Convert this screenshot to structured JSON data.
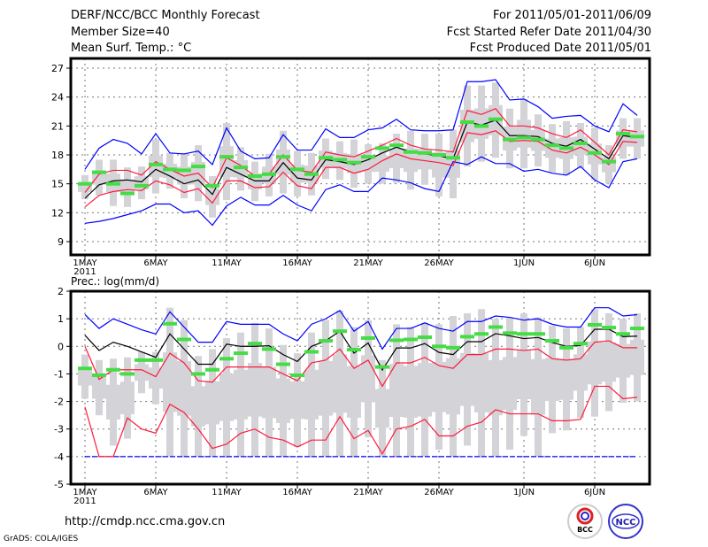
{
  "header": {
    "title": "DERF/NCC/BCC Monthly Forecast",
    "member_size": "Member Size=40",
    "variable": "Mean Surf. Temp.: °C",
    "period": "For 2011/05/01-2011/06/09",
    "started": "Fcst Started Refer Date 2011/04/30",
    "produced": "Fcst Produced Date 2011/05/01"
  },
  "footer": {
    "url": "http://cmdp.ncc.cma.gov.cn",
    "credit": "GrADS: COLA/IGES",
    "logo_bcc": "BCC",
    "logo_ncc": "NCC"
  },
  "colors": {
    "max_min": "#0000ff",
    "spread": "#ff1a3c",
    "mean": "#000000",
    "median": "#44dd44",
    "box": "#d3d3d8"
  },
  "chart_data": [
    {
      "type": "line",
      "title": "Mean Surf. Temp.: °C",
      "xlabel_year": "2011",
      "x_ticks": [
        {
          "day": 1,
          "label": "1MAY"
        },
        {
          "day": 6,
          "label": "6MAY"
        },
        {
          "day": 11,
          "label": "11MAY"
        },
        {
          "day": 16,
          "label": "16MAY"
        },
        {
          "day": 21,
          "label": "21MAY"
        },
        {
          "day": 26,
          "label": "26MAY"
        },
        {
          "day": 32,
          "label": "1JUN"
        },
        {
          "day": 37,
          "label": "6JUN"
        }
      ],
      "y_ticks": [
        9,
        12,
        15,
        18,
        21,
        24,
        27
      ],
      "ylim": [
        8,
        28
      ],
      "grid": true,
      "series": [
        {
          "name": "max",
          "color": "#0000ff",
          "values": [
            16.5,
            18.7,
            19.6,
            19.2,
            18.1,
            20.2,
            18.2,
            18.1,
            18.4,
            17.0,
            20.8,
            18.4,
            17.6,
            17.7,
            20.1,
            18.5,
            18.5,
            20.7,
            19.8,
            19.8,
            20.6,
            20.8,
            21.7,
            20.6,
            20.5,
            20.5,
            20.6,
            25.6,
            25.6,
            25.8,
            23.7,
            23.8,
            23.0,
            21.8,
            22.0,
            22.1,
            21.0,
            20.4,
            23.3,
            22.1
          ]
        },
        {
          "name": "min",
          "color": "#0000ff",
          "values": [
            10.9,
            11.1,
            11.4,
            11.8,
            12.2,
            12.9,
            12.9,
            12.0,
            12.2,
            10.7,
            12.7,
            13.6,
            12.8,
            12.8,
            13.8,
            12.8,
            12.2,
            14.4,
            14.9,
            14.2,
            14.2,
            15.6,
            15.4,
            15.1,
            14.5,
            14.2,
            17.3,
            17.0,
            17.8,
            17.1,
            17.1,
            16.3,
            16.5,
            16.1,
            15.9,
            16.8,
            15.4,
            14.6,
            17.3,
            17.6
          ]
        },
        {
          "name": "upper",
          "color": "#ff1a3c",
          "values": [
            14.1,
            16.0,
            16.4,
            16.4,
            15.9,
            17.3,
            16.5,
            15.8,
            16.1,
            14.6,
            17.7,
            16.9,
            15.8,
            16.0,
            18.0,
            16.4,
            16.2,
            18.3,
            18.0,
            17.8,
            18.4,
            19.0,
            19.7,
            19.0,
            18.6,
            18.5,
            18.3,
            22.6,
            22.2,
            22.8,
            21.0,
            21.0,
            20.8,
            20.2,
            19.8,
            20.6,
            19.3,
            18.0,
            20.6,
            20.4
          ]
        },
        {
          "name": "lower",
          "color": "#ff1a3c",
          "values": [
            12.6,
            13.8,
            14.2,
            14.4,
            14.3,
            15.3,
            14.9,
            14.1,
            14.5,
            13.0,
            15.3,
            15.3,
            14.6,
            14.7,
            16.2,
            14.8,
            14.5,
            16.7,
            16.7,
            16.1,
            16.5,
            17.4,
            18.1,
            17.6,
            17.4,
            17.2,
            16.9,
            20.3,
            20.1,
            20.5,
            19.4,
            19.5,
            19.4,
            18.5,
            18.2,
            18.8,
            18.0,
            17.0,
            19.4,
            19.3
          ]
        },
        {
          "name": "mean",
          "color": "#000000",
          "values": [
            13.5,
            14.9,
            15.3,
            15.4,
            15.2,
            16.5,
            15.8,
            15.0,
            15.4,
            13.9,
            16.7,
            16.0,
            15.3,
            15.3,
            17.2,
            15.6,
            15.4,
            17.5,
            17.3,
            17.0,
            17.5,
            18.2,
            18.8,
            18.3,
            18.1,
            17.9,
            17.6,
            21.4,
            21.1,
            21.6,
            20.0,
            20.0,
            19.9,
            19.2,
            18.9,
            19.6,
            18.6,
            17.6,
            20.0,
            19.8
          ]
        }
      ],
      "box_high": [
        15.9,
        17.5,
        17.5,
        16.7,
        16.8,
        19.6,
        18.2,
        18.2,
        19.0,
        15.8,
        21.3,
        18.8,
        17.3,
        18.1,
        20.5,
        18.4,
        18.2,
        19.7,
        19.4,
        19.6,
        19.1,
        19.2,
        20.2,
        20.5,
        20.2,
        20.2,
        20.6,
        25.2,
        25.2,
        25.5,
        22.8,
        23.8,
        22.2,
        21.2,
        21.5,
        21.3,
        20.8,
        19.0,
        21.8,
        21.8
      ],
      "box_low": [
        13.4,
        13.8,
        12.7,
        12.6,
        13.4,
        14.0,
        14.5,
        13.5,
        13.2,
        11.5,
        13.3,
        14.3,
        13.2,
        13.7,
        14.0,
        13.7,
        13.8,
        15.5,
        15.4,
        14.6,
        15.0,
        15.0,
        15.1,
        14.4,
        14.9,
        13.7,
        13.5,
        16.8,
        17.3,
        17.7,
        16.6,
        16.6,
        16.8,
        16.2,
        15.9,
        16.6,
        15.4,
        15.0,
        17.6,
        17.6
      ],
      "median": [
        15.0,
        16.2,
        15.0,
        14.0,
        14.8,
        17.0,
        16.5,
        16.4,
        16.8,
        14.8,
        17.8,
        16.7,
        15.8,
        16.0,
        17.8,
        16.5,
        16.0,
        17.7,
        17.5,
        17.2,
        17.8,
        18.7,
        19.0,
        18.3,
        18.2,
        18.0,
        17.7,
        21.4,
        21.0,
        21.7,
        19.6,
        19.8,
        19.6,
        19.0,
        18.7,
        19.2,
        18.2,
        17.3,
        20.2,
        19.9
      ]
    },
    {
      "type": "line",
      "title": "Prec.: log(mm/d)",
      "xlabel_year": "2011",
      "x_ticks": [
        {
          "day": 1,
          "label": "1MAY"
        },
        {
          "day": 6,
          "label": "6MAY"
        },
        {
          "day": 11,
          "label": "11MAY"
        },
        {
          "day": 16,
          "label": "16MAY"
        },
        {
          "day": 21,
          "label": "21MAY"
        },
        {
          "day": 26,
          "label": "26MAY"
        },
        {
          "day": 32,
          "label": "1JUN"
        },
        {
          "day": 37,
          "label": "6JUN"
        }
      ],
      "y_ticks": [
        -5,
        -4,
        -3,
        -2,
        -1,
        0,
        1,
        2
      ],
      "ylim": [
        -5,
        2
      ],
      "grid": true,
      "series": [
        {
          "name": "max",
          "color": "#0000ff",
          "values": [
            1.15,
            0.65,
            1.0,
            0.8,
            0.6,
            0.45,
            1.25,
            0.7,
            0.15,
            0.15,
            0.9,
            0.8,
            0.8,
            0.8,
            0.45,
            0.2,
            0.8,
            1.0,
            1.3,
            0.55,
            0.9,
            -0.1,
            0.65,
            0.65,
            0.85,
            0.65,
            0.55,
            0.9,
            0.9,
            1.1,
            1.05,
            0.95,
            1.0,
            0.8,
            0.7,
            0.7,
            1.4,
            1.4,
            1.1,
            1.15
          ]
        },
        {
          "name": "min",
          "color": "#0000ff",
          "values": [
            -4,
            -4,
            -4,
            -4,
            -4,
            -4,
            -4,
            -4,
            -4,
            -4,
            -4,
            -4,
            -4,
            -4,
            -4,
            -4,
            -4,
            -4,
            -4,
            -4,
            -4,
            -4,
            -4,
            -4,
            -4,
            -4,
            -4,
            -4,
            -4,
            -4,
            -4,
            -4,
            -4,
            -4,
            -4,
            -4,
            -4,
            -4,
            -4,
            -4
          ]
        },
        {
          "name": "upper",
          "color": "#ff1a3c",
          "values": [
            0.0,
            -1.2,
            -0.85,
            -0.85,
            -0.85,
            -1.1,
            -0.25,
            -0.6,
            -1.25,
            -1.3,
            -0.75,
            -0.75,
            -0.75,
            -0.75,
            -1.0,
            -1.25,
            -0.6,
            -0.5,
            -0.1,
            -0.8,
            -0.5,
            -1.45,
            -0.6,
            -0.6,
            -0.4,
            -0.7,
            -0.8,
            -0.3,
            -0.3,
            -0.1,
            -0.1,
            -0.15,
            -0.1,
            -0.45,
            -0.5,
            -0.45,
            0.15,
            0.2,
            -0.05,
            -0.05
          ]
        },
        {
          "name": "lower",
          "color": "#ff1a3c",
          "values": [
            -2.2,
            -4,
            -4,
            -2.6,
            -3.0,
            -3.15,
            -2.1,
            -2.4,
            -3.0,
            -3.7,
            -3.55,
            -3.15,
            -3.0,
            -3.3,
            -3.4,
            -3.65,
            -3.4,
            -3.4,
            -2.55,
            -3.35,
            -3.05,
            -3.9,
            -3.0,
            -2.9,
            -2.65,
            -3.25,
            -3.25,
            -2.9,
            -2.75,
            -2.3,
            -2.45,
            -2.45,
            -2.45,
            -2.7,
            -2.7,
            -2.65,
            -1.45,
            -1.45,
            -1.9,
            -1.85
          ]
        },
        {
          "name": "mean",
          "color": "#000000",
          "values": [
            0.4,
            -0.15,
            0.15,
            0.0,
            -0.2,
            -0.4,
            0.45,
            -0.1,
            -0.65,
            -0.65,
            0.08,
            0.0,
            0.0,
            0.02,
            -0.3,
            -0.55,
            0.0,
            0.2,
            0.55,
            -0.25,
            0.12,
            -0.86,
            -0.06,
            -0.06,
            0.1,
            -0.22,
            -0.3,
            0.17,
            0.17,
            0.46,
            0.38,
            0.28,
            0.32,
            0.14,
            0.0,
            0.03,
            0.62,
            0.62,
            0.35,
            0.37
          ]
        }
      ],
      "box_high": [
        -0.3,
        -0.5,
        -0.45,
        -0.4,
        -0.2,
        -0.2,
        1.4,
        0.95,
        -0.35,
        -0.1,
        0.3,
        0.5,
        0.85,
        0.65,
        0.05,
        -0.25,
        0.5,
        0.95,
        1.3,
        0.7,
        0.95,
        -0.5,
        0.8,
        0.7,
        0.85,
        0.8,
        1.1,
        1.2,
        1.35,
        1.0,
        1.05,
        1.2,
        1.05,
        0.75,
        0.65,
        0.7,
        1.35,
        1.2,
        1.0,
        1.2
      ],
      "box_low": [
        -1.9,
        -2.5,
        -3.6,
        -3.35,
        -1.7,
        -2.1,
        -4,
        -4,
        -4,
        -4,
        -4,
        -4,
        -4,
        -4,
        -4,
        -3.65,
        -4,
        -4,
        -4,
        -4,
        -3.3,
        -4,
        -4,
        -4,
        -4,
        -3.75,
        -4,
        -3.6,
        -4,
        -4,
        -3.75,
        -3.25,
        -4,
        -3.15,
        -3.05,
        -2.6,
        -2.55,
        -2.35,
        -2.05,
        -2.0
      ],
      "median": [
        -0.8,
        -1.05,
        -0.85,
        -1.0,
        -0.5,
        -0.5,
        0.82,
        0.25,
        -1.0,
        -0.85,
        -0.45,
        -0.25,
        0.1,
        -0.1,
        -0.65,
        -1.05,
        -0.2,
        0.2,
        0.55,
        -0.12,
        0.3,
        -0.75,
        0.22,
        0.25,
        0.33,
        0.0,
        -0.05,
        0.35,
        0.45,
        0.7,
        0.48,
        0.45,
        0.45,
        0.2,
        -0.05,
        0.1,
        0.78,
        0.68,
        0.45,
        0.65
      ]
    }
  ]
}
